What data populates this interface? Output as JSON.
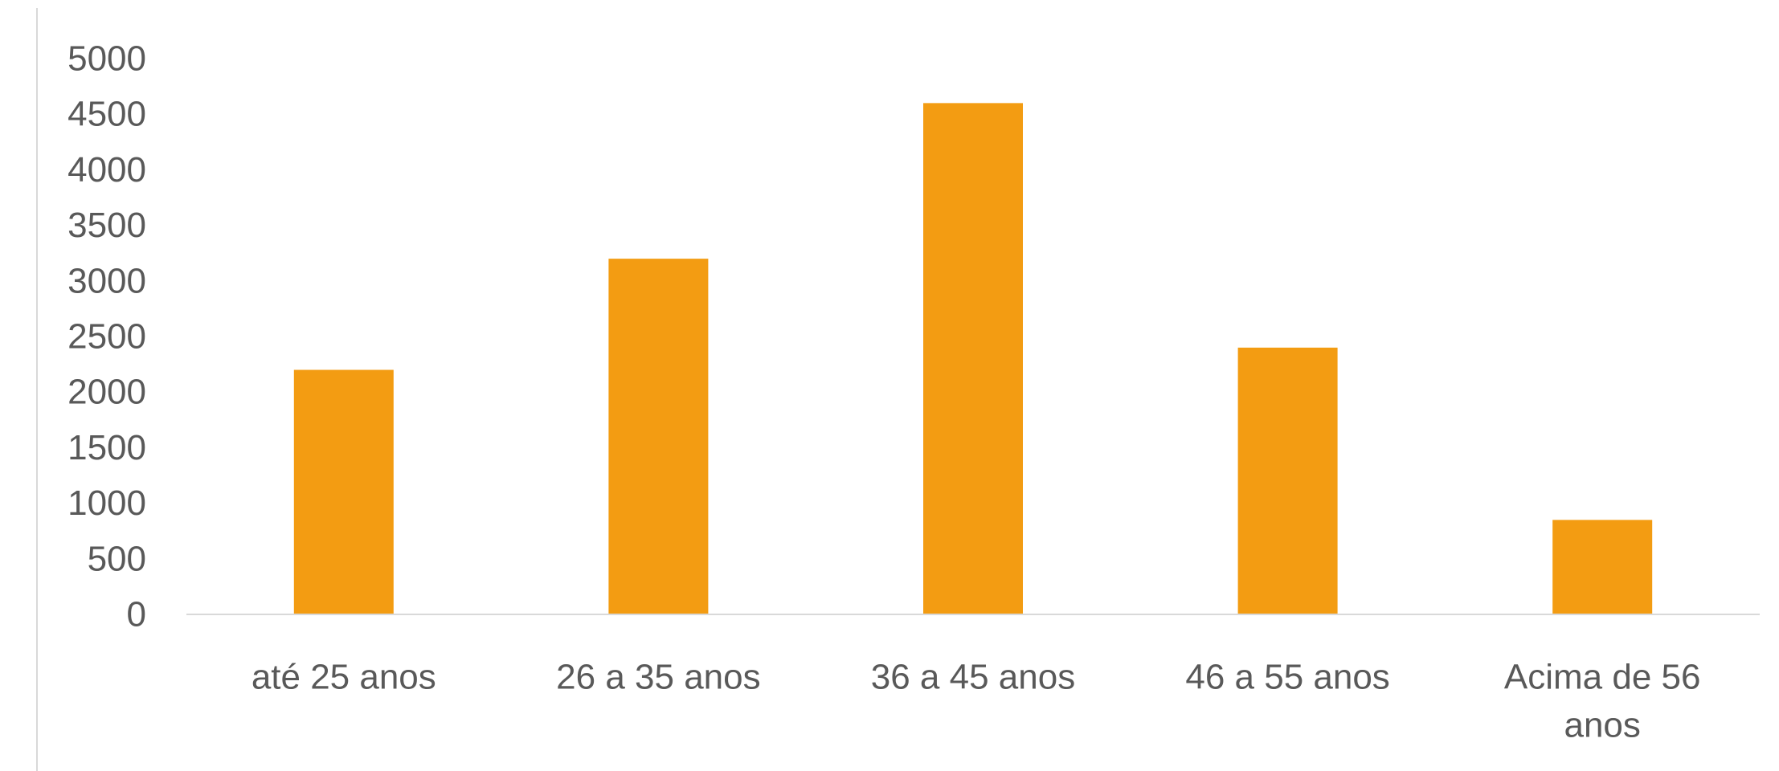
{
  "chart_data": {
    "type": "bar",
    "title": "",
    "xlabel": "",
    "ylabel": "",
    "categories": [
      "até 25 anos",
      "26 a 35 anos",
      "36 a 45 anos",
      "46 a 55 anos",
      "Acima de 56 anos"
    ],
    "category_lines": [
      [
        "até 25 anos"
      ],
      [
        "26 a 35 anos"
      ],
      [
        "36 a 45 anos"
      ],
      [
        "46 a 55 anos"
      ],
      [
        "Acima de 56",
        "anos"
      ]
    ],
    "values": [
      2200,
      3200,
      4600,
      2400,
      850
    ],
    "ylim": [
      0,
      5000
    ],
    "yticks": [
      0,
      500,
      1000,
      1500,
      2000,
      2500,
      3000,
      3500,
      4000,
      4500,
      5000
    ],
    "grid": false,
    "legend": "none",
    "colors": {
      "bar": "#F39C12",
      "axis": "#D9D9D9",
      "text": "#595959"
    }
  }
}
